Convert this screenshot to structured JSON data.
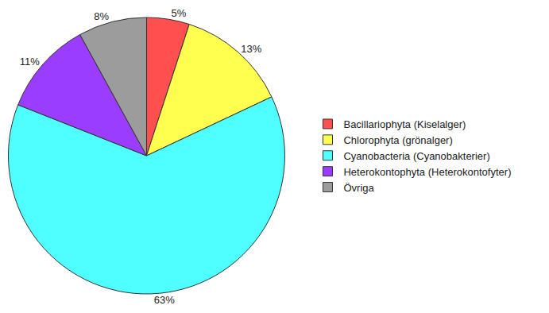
{
  "chart_data": {
    "type": "pie",
    "categories": [
      "Bacillariophyta (Kiselalger)",
      "Chlorophyta (grönalger)",
      "Cyanobacteria (Cyanobakterier)",
      "Heterokontophyta (Heterokontofyter)",
      "Övriga"
    ],
    "values": [
      5,
      13,
      63,
      11,
      8
    ],
    "value_labels": [
      "5%",
      "13%",
      "63%",
      "11%",
      "8%"
    ],
    "colors": [
      "#ff4f4f",
      "#ffff4f",
      "#4fffff",
      "#9b3dff",
      "#9c9c9c"
    ],
    "data_labels": true,
    "legend": "right"
  }
}
